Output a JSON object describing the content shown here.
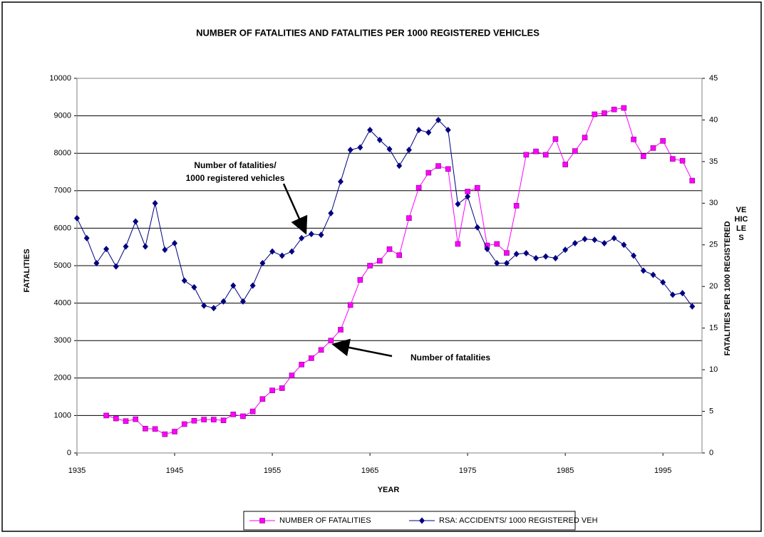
{
  "chart_data": {
    "type": "line",
    "title": "NUMBER OF FATALITIES AND FATALITIES PER 1000 REGISTERED VEHICLES",
    "xlabel": "YEAR",
    "ylabel": "FATALITIES",
    "y2label": {
      "rotated": "FATALITIES PER 1000 REGISTERED",
      "stacked": [
        "VE",
        "HIC",
        "LE",
        "S"
      ]
    },
    "x": [
      1935,
      1936,
      1937,
      1938,
      1939,
      1940,
      1941,
      1942,
      1943,
      1944,
      1945,
      1946,
      1947,
      1948,
      1949,
      1950,
      1951,
      1952,
      1953,
      1954,
      1955,
      1956,
      1957,
      1958,
      1959,
      1960,
      1961,
      1962,
      1963,
      1964,
      1965,
      1966,
      1967,
      1968,
      1969,
      1970,
      1971,
      1972,
      1973,
      1974,
      1975,
      1976,
      1977,
      1978,
      1979,
      1980,
      1981,
      1982,
      1983,
      1984,
      1985,
      1986,
      1987,
      1988,
      1989,
      1990,
      1991,
      1992,
      1993,
      1994,
      1995,
      1996,
      1997,
      1998
    ],
    "series": [
      {
        "name": "NUMBER OF FATALITIES",
        "color": "#ff00ff",
        "marker": "square",
        "values": [
          null,
          null,
          null,
          1000,
          920,
          850,
          900,
          650,
          640,
          500,
          570,
          770,
          860,
          890,
          890,
          870,
          1030,
          980,
          1110,
          1440,
          1670,
          1730,
          2070,
          2360,
          2530,
          2750,
          3000,
          3290,
          3950,
          4620,
          5000,
          5130,
          5440,
          5280,
          6270,
          7080,
          7480,
          7660,
          7580,
          5580,
          6980,
          7080,
          5540,
          5580,
          5340,
          6600,
          7960,
          8050,
          7960,
          8380,
          7700,
          8060,
          8420,
          9040,
          9070,
          9170,
          9210,
          8370,
          7920,
          8140,
          8330,
          7850,
          7800,
          7270
        ]
      },
      {
        "name": "RSA: ACCIDENTS/ 1000 REGISTERED VEH",
        "color": "#000080",
        "marker": "diamond",
        "axis": "y2",
        "values": [
          28.2,
          25.8,
          22.8,
          24.5,
          22.4,
          24.8,
          27.8,
          24.8,
          30.0,
          24.4,
          25.2,
          20.7,
          19.9,
          17.7,
          17.4,
          18.2,
          20.1,
          18.2,
          20.1,
          22.8,
          24.2,
          23.7,
          24.2,
          25.8,
          26.3,
          26.2,
          28.8,
          32.6,
          36.4,
          36.7,
          38.8,
          37.6,
          36.5,
          34.5,
          36.4,
          38.8,
          38.5,
          40.0,
          38.8,
          29.9,
          30.8,
          27.1,
          24.5,
          22.8,
          22.8,
          23.9,
          24.0,
          23.4,
          23.6,
          23.4,
          24.4,
          25.2,
          25.7,
          25.6,
          25.2,
          25.8,
          25.0,
          23.7,
          21.9,
          21.4,
          20.5,
          19.0,
          19.2,
          17.6
        ]
      }
    ],
    "xlim": [
      1935,
      1999
    ],
    "xticks": [
      1935,
      1945,
      1955,
      1965,
      1975,
      1985,
      1995
    ],
    "ylim": [
      0,
      10000
    ],
    "yticks": [
      0,
      1000,
      2000,
      3000,
      4000,
      5000,
      6000,
      7000,
      8000,
      9000,
      10000
    ],
    "y2lim": [
      0,
      45
    ],
    "y2ticks": [
      0,
      5,
      10,
      15,
      20,
      25,
      30,
      35,
      40,
      45
    ],
    "grid": true,
    "annotations": [
      [
        "Number of fatalities/",
        "1000 registered vehicles"
      ],
      [
        "Number of fatalities"
      ]
    ]
  }
}
